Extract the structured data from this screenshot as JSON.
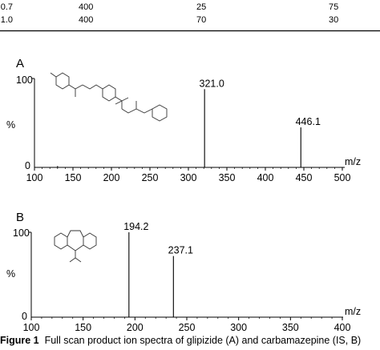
{
  "table": {
    "rows": [
      [
        "0.7",
        "400",
        "25",
        "75"
      ],
      [
        "1.0",
        "400",
        "70",
        "30"
      ]
    ]
  },
  "chart_data": [
    {
      "type": "bar",
      "panel_label": "A",
      "xlabel": "m/z",
      "ylabel": "%",
      "xlim": [
        100,
        500
      ],
      "ylim": [
        0,
        100
      ],
      "x_ticks": [
        "100",
        "150",
        "200",
        "250",
        "300",
        "350",
        "400",
        "450",
        "500"
      ],
      "y_ticks": [
        "0",
        "100"
      ],
      "peaks": [
        {
          "mz": 130,
          "intensity": 1.5
        },
        {
          "mz": 321.0,
          "intensity": 88,
          "label": "321.0"
        },
        {
          "mz": 446.1,
          "intensity": 45,
          "label": "446.1"
        }
      ],
      "structure": "glipizide"
    },
    {
      "type": "bar",
      "panel_label": "B",
      "xlabel": "m/z",
      "ylabel": "%",
      "xlim": [
        100,
        400
      ],
      "ylim": [
        0,
        100
      ],
      "x_ticks": [
        "100",
        "150",
        "200",
        "250",
        "300",
        "350",
        "400"
      ],
      "y_ticks": [
        "0",
        "100"
      ],
      "peaks": [
        {
          "mz": 194.2,
          "intensity": 100,
          "label": "194.2"
        },
        {
          "mz": 237.1,
          "intensity": 72,
          "label": "237.1"
        }
      ],
      "structure": "carbamazepine"
    }
  ],
  "caption": {
    "bold": "Figure 1",
    "text": "Full scan product ion spectra of glipizide (A) and carbamazepine (IS, B)"
  }
}
